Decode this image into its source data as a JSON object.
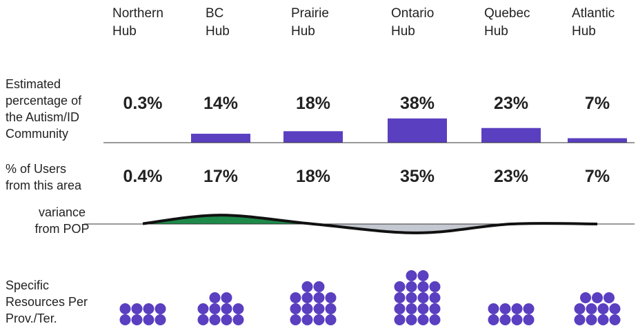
{
  "chart_data": {
    "type": "bar",
    "categories": [
      "Northern\nHub",
      "BC\nHub",
      "Prairie\nHub",
      "Ontario\nHub",
      "Quebec\nHub",
      "Atlantic\nHub"
    ],
    "series": [
      {
        "name": "Estimated\npercentage of\nthe Autism/ID\nCommunity",
        "color": "#5a3fc0",
        "values": [
          0.3,
          14,
          18,
          38,
          23,
          7
        ],
        "value_labels": [
          "0.3%",
          "14%",
          "18%",
          "38%",
          "23%",
          "7%"
        ]
      },
      {
        "name": "% of Users\nfrom this area",
        "values": [
          0.4,
          17,
          18,
          35,
          23,
          7
        ],
        "value_labels": [
          "0.4%",
          "17%",
          "18%",
          "35%",
          "23%",
          "7%"
        ]
      }
    ],
    "variance": {
      "name": "variance\nfrom  POP",
      "above_color": "#1e8a4a",
      "below_color": "#c4c8d0",
      "line_color": "#111111"
    },
    "resources": {
      "name": "Specific\nResources Per\nProv./Ter.",
      "color": "#5a3fc0",
      "values": [
        8,
        10,
        14,
        18,
        8,
        11
      ]
    },
    "ylim": [
      0,
      40
    ]
  }
}
